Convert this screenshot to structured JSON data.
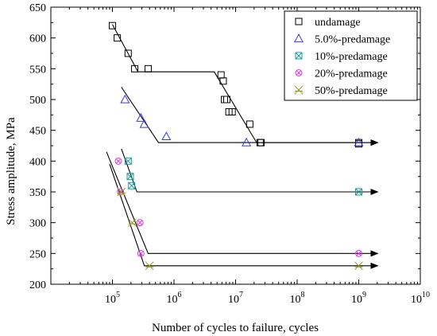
{
  "chart_data": {
    "type": "scatter",
    "xlabel": "Number of cycles to failure, cycles",
    "ylabel": "Stress amplitude,  MPa",
    "x_scale": "log",
    "xlim": [
      10000,
      10000000000
    ],
    "ylim": [
      200,
      650
    ],
    "x_ticks": [
      {
        "value": 100000,
        "base": "10",
        "exp": "5"
      },
      {
        "value": 1000000,
        "base": "10",
        "exp": "6"
      },
      {
        "value": 10000000,
        "base": "10",
        "exp": "7"
      },
      {
        "value": 100000000,
        "base": "10",
        "exp": "8"
      },
      {
        "value": 1000000000,
        "base": "10",
        "exp": "9"
      },
      {
        "value": 10000000000,
        "base": "10",
        "exp": "10"
      }
    ],
    "y_ticks": [
      "200",
      "250",
      "300",
      "350",
      "400",
      "450",
      "500",
      "550",
      "600",
      "650"
    ],
    "legend_position": "top-right",
    "series": [
      {
        "name": "undamage",
        "marker": "square",
        "color": "#000000",
        "points": [
          [
            100000,
            620
          ],
          [
            120000,
            600
          ],
          [
            180000,
            575
          ],
          [
            230000,
            550
          ],
          [
            380000,
            550
          ],
          [
            5800000,
            540
          ],
          [
            6300000,
            530
          ],
          [
            6600000,
            500
          ],
          [
            7200000,
            500
          ],
          [
            7800000,
            480
          ],
          [
            8800000,
            480
          ],
          [
            17000000,
            460
          ],
          [
            25000000,
            430
          ],
          [
            26000000,
            430
          ],
          [
            1000000000,
            430
          ],
          [
            1000000000,
            428
          ]
        ],
        "fit": [
          [
            100000,
            622
          ],
          [
            260000,
            545
          ],
          [
            4500000,
            545
          ],
          [
            22000000,
            430
          ],
          [
            1000000000,
            430
          ]
        ],
        "runout_arrow": true
      },
      {
        "name": "5.0%-predamage",
        "marker": "triangle",
        "color": "#3b3bd6",
        "points": [
          [
            160000,
            500
          ],
          [
            290000,
            470
          ],
          [
            330000,
            460
          ],
          [
            750000,
            440
          ],
          [
            15000000,
            430
          ],
          [
            1000000000,
            430
          ]
        ],
        "fit": [
          [
            140000,
            520
          ],
          [
            560000,
            430
          ],
          [
            1000000000,
            430
          ]
        ],
        "runout_arrow": true
      },
      {
        "name": "10%-predamage",
        "marker": "square-x",
        "color": "#1a9a9a",
        "points": [
          [
            180000,
            400
          ],
          [
            195000,
            375
          ],
          [
            205000,
            360
          ],
          [
            1000000000,
            350
          ]
        ],
        "fit": [
          [
            140000,
            420
          ],
          [
            250000,
            350
          ],
          [
            1000000000,
            350
          ]
        ],
        "runout_arrow": true
      },
      {
        "name": "20%-predamage",
        "marker": "circle-x",
        "color": "#e03ae0",
        "points": [
          [
            125000,
            400
          ],
          [
            135000,
            350
          ],
          [
            280000,
            300
          ],
          [
            290000,
            250
          ],
          [
            1000000000,
            250
          ]
        ],
        "fit": [
          [
            80000,
            415
          ],
          [
            380000,
            250
          ],
          [
            1000000000,
            250
          ]
        ],
        "runout_arrow": true
      },
      {
        "name": "50%-predamage",
        "marker": "star-x",
        "color": "#9a9a1a",
        "points": [
          [
            140000,
            350
          ],
          [
            210000,
            300
          ],
          [
            400000,
            230
          ],
          [
            1000000000,
            230
          ]
        ],
        "fit": [
          [
            90000,
            395
          ],
          [
            330000,
            230
          ],
          [
            1000000000,
            230
          ]
        ],
        "runout_arrow": true
      }
    ]
  }
}
